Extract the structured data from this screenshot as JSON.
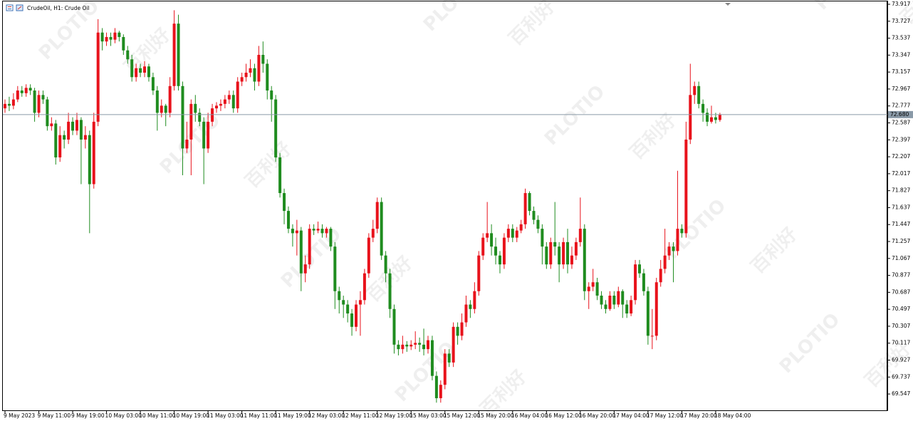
{
  "chart_data": {
    "type": "candlestick",
    "title": "CrudeOil, H1:  Crude Oil",
    "watermarks": [
      "PLOTIO",
      "百利好"
    ],
    "up_color": "#e8121b",
    "down_color": "#1f8c1f",
    "ylim": [
      69.364,
      73.965
    ],
    "yticks": [
      73.917,
      73.727,
      73.537,
      73.347,
      73.157,
      72.967,
      72.777,
      72.587,
      72.397,
      72.207,
      72.017,
      71.827,
      71.637,
      71.447,
      71.257,
      71.067,
      70.877,
      70.687,
      70.497,
      70.307,
      70.117,
      69.927,
      69.737,
      69.547
    ],
    "current_price": {
      "value": 72.68,
      "label": "72.680"
    },
    "categories": [
      "9 May 2023",
      null,
      null,
      null,
      null,
      null,
      null,
      null,
      "9 May 11:00",
      null,
      null,
      null,
      null,
      null,
      null,
      null,
      "9 May 19:00",
      null,
      null,
      null,
      null,
      null,
      null,
      null,
      "10 May 03:00",
      null,
      null,
      null,
      null,
      null,
      null,
      null,
      "10 May 11:00",
      null,
      null,
      null,
      null,
      null,
      null,
      null,
      "10 May 19:00",
      null,
      null,
      null,
      null,
      null,
      null,
      null,
      "11 May 03:00",
      null,
      null,
      null,
      null,
      null,
      null,
      null,
      "11 May 11:00",
      null,
      null,
      null,
      null,
      null,
      null,
      null,
      "11 May 19:00",
      null,
      null,
      null,
      null,
      null,
      null,
      null,
      "12 May 03:00",
      null,
      null,
      null,
      null,
      null,
      null,
      null,
      "12 May 11:00",
      null,
      null,
      null,
      null,
      null,
      null,
      null,
      "12 May 19:00",
      null,
      null,
      null,
      null,
      null,
      null,
      null,
      "15 May 03:00",
      null,
      null,
      null,
      null,
      null,
      null,
      null,
      "15 May 12:00",
      null,
      null,
      null,
      null,
      null,
      null,
      null,
      "15 May 20:00",
      null,
      null,
      null,
      null,
      null,
      null,
      null,
      "16 May 04:00",
      null,
      null,
      null,
      null,
      null,
      null,
      null,
      "16 May 12:00",
      null,
      null,
      null,
      null,
      null,
      null,
      null,
      "16 May 20:00",
      null,
      null,
      null,
      null,
      null,
      null,
      null,
      "17 May 04:00",
      null,
      null,
      null,
      null,
      null,
      null,
      null,
      "17 May 12:00",
      null,
      null,
      null,
      null,
      null,
      null,
      null,
      "17 May 20:00",
      null,
      null,
      null,
      null,
      null,
      null,
      null,
      "18 May 04:00",
      null
    ],
    "open": [
      72.75,
      72.8,
      72.78,
      72.85,
      72.95,
      72.92,
      72.98,
      72.95,
      72.7,
      72.9,
      72.85,
      72.55,
      72.58,
      72.2,
      72.45,
      72.4,
      72.6,
      72.5,
      72.62,
      72.4,
      72.45,
      71.9,
      72.6,
      73.6,
      73.5,
      73.55,
      73.52,
      73.6,
      73.55,
      73.4,
      73.3,
      73.1,
      73.2,
      73.15,
      73.22,
      73.1,
      72.95,
      72.7,
      72.78,
      72.7,
      73.0,
      73.7,
      73.0,
      72.3,
      72.4,
      72.8,
      72.7,
      72.6,
      72.3,
      72.6,
      72.75,
      72.78,
      72.8,
      72.85,
      72.9,
      72.75,
      73.05,
      73.1,
      73.15,
      73.2,
      73.05,
      73.35,
      73.25,
      72.95,
      72.85,
      72.2,
      71.8,
      71.6,
      71.4,
      71.35,
      71.38,
      70.9,
      71.0,
      71.4,
      71.38,
      71.4,
      71.35,
      71.4,
      71.2,
      70.7,
      70.6,
      70.55,
      70.45,
      70.3,
      70.55,
      70.6,
      70.9,
      71.3,
      71.4,
      71.7,
      71.1,
      70.9,
      70.5,
      70.1,
      70.05,
      70.1,
      70.08,
      70.1,
      70.12,
      70.1,
      70.05,
      70.15,
      69.75,
      69.5,
      69.65,
      70.0,
      69.9,
      70.3,
      70.2,
      70.35,
      70.55,
      70.5,
      70.7,
      71.1,
      71.3,
      71.35,
      71.2,
      71.1,
      71.0,
      71.3,
      71.4,
      71.3,
      71.38,
      71.45,
      71.8,
      71.6,
      71.5,
      71.4,
      71.2,
      71.0,
      71.25,
      71.2,
      71.0,
      71.25,
      71.0,
      71.1,
      71.25,
      71.4,
      70.7,
      70.75,
      70.8,
      70.65,
      70.55,
      70.5,
      70.65,
      70.55,
      70.7,
      70.55,
      70.45,
      70.6,
      71.0,
      70.9,
      70.7,
      70.2,
      70.2,
      70.8,
      70.95,
      71.1,
      71.2,
      71.15,
      71.4,
      71.35,
      72.4,
      72.9,
      73.0,
      72.8,
      72.7,
      72.6,
      72.65,
      72.62
    ],
    "high": [
      72.85,
      72.88,
      72.92,
      73.0,
      73.0,
      73.02,
      73.02,
      72.98,
      72.95,
      72.95,
      72.88,
      72.65,
      72.62,
      72.55,
      72.5,
      72.7,
      72.65,
      72.7,
      72.65,
      72.55,
      72.5,
      72.7,
      73.75,
      73.65,
      73.6,
      73.6,
      73.65,
      73.62,
      73.58,
      73.45,
      73.35,
      73.25,
      73.25,
      73.28,
      73.25,
      73.15,
      73.0,
      72.85,
      72.8,
      73.1,
      73.85,
      73.8,
      73.05,
      72.6,
      72.85,
      72.9,
      72.75,
      72.65,
      72.7,
      72.8,
      72.82,
      72.85,
      72.9,
      72.95,
      72.95,
      73.1,
      73.15,
      73.25,
      73.3,
      73.25,
      73.45,
      73.5,
      73.3,
      73.0,
      72.9,
      72.25,
      71.85,
      71.65,
      71.45,
      71.5,
      71.42,
      71.1,
      71.45,
      71.45,
      71.48,
      71.45,
      71.42,
      71.42,
      71.25,
      70.75,
      70.65,
      70.6,
      70.5,
      70.6,
      70.7,
      70.95,
      71.35,
      71.5,
      71.75,
      71.75,
      71.15,
      70.95,
      70.55,
      70.15,
      70.2,
      70.14,
      70.15,
      70.25,
      70.18,
      70.28,
      70.2,
      70.2,
      69.8,
      69.7,
      70.05,
      70.05,
      70.35,
      70.35,
      70.45,
      70.65,
      70.6,
      70.8,
      71.15,
      71.35,
      71.7,
      71.45,
      71.3,
      71.15,
      71.35,
      71.45,
      71.45,
      71.42,
      71.5,
      71.85,
      71.82,
      71.65,
      71.55,
      71.45,
      71.25,
      71.3,
      71.7,
      71.25,
      71.3,
      71.4,
      71.2,
      71.3,
      71.75,
      71.45,
      70.8,
      70.95,
      70.85,
      70.7,
      70.6,
      70.7,
      70.7,
      70.75,
      70.72,
      70.6,
      70.65,
      71.05,
      71.05,
      70.95,
      70.75,
      70.5,
      70.85,
      71.05,
      71.4,
      71.25,
      71.25,
      72.05,
      71.45,
      72.6,
      73.25,
      73.05,
      73.05,
      72.85,
      72.75,
      72.78,
      72.7,
      72.7
    ],
    "low": [
      72.7,
      72.72,
      72.74,
      72.82,
      72.88,
      72.88,
      72.9,
      72.6,
      72.65,
      72.8,
      72.5,
      72.5,
      72.12,
      72.15,
      72.3,
      72.35,
      72.45,
      72.45,
      71.9,
      72.3,
      71.35,
      71.85,
      72.55,
      73.4,
      73.45,
      73.45,
      73.48,
      73.5,
      73.35,
      73.25,
      73.05,
      73.05,
      73.1,
      73.1,
      73.05,
      72.9,
      72.5,
      72.65,
      72.55,
      72.65,
      72.95,
      72.95,
      72.0,
      72.25,
      72.0,
      72.6,
      72.55,
      71.9,
      72.25,
      72.55,
      72.7,
      72.72,
      72.75,
      72.8,
      72.7,
      72.7,
      73.0,
      73.05,
      73.1,
      72.95,
      73.0,
      73.15,
      72.85,
      72.6,
      72.15,
      71.75,
      71.45,
      71.35,
      71.2,
      71.1,
      70.7,
      70.8,
      70.95,
      71.33,
      71.35,
      71.3,
      71.3,
      71.15,
      70.5,
      70.45,
      70.4,
      70.35,
      70.2,
      70.25,
      70.2,
      70.55,
      70.85,
      71.25,
      71.35,
      71.05,
      70.8,
      70.4,
      70.0,
      69.98,
      70.0,
      70.02,
      70.04,
      70.05,
      70.02,
      69.98,
      70.0,
      69.7,
      69.45,
      69.45,
      69.6,
      69.85,
      69.85,
      70.1,
      70.15,
      70.3,
      70.4,
      70.45,
      70.65,
      71.05,
      71.25,
      71.1,
      71.0,
      70.9,
      70.95,
      71.25,
      71.25,
      71.25,
      71.35,
      71.4,
      71.55,
      71.45,
      71.35,
      71.0,
      70.95,
      70.95,
      71.1,
      70.8,
      70.95,
      70.9,
      70.95,
      71.05,
      71.2,
      70.6,
      70.5,
      70.7,
      70.6,
      70.5,
      70.45,
      70.48,
      70.5,
      70.52,
      70.4,
      70.4,
      70.42,
      70.55,
      70.85,
      70.65,
      70.1,
      70.05,
      70.15,
      70.75,
      70.9,
      71.05,
      70.8,
      71.1,
      71.3,
      71.3,
      72.35,
      72.8,
      72.75,
      72.6,
      72.55,
      72.58,
      72.58,
      72.6
    ],
    "close": [
      72.8,
      72.78,
      72.85,
      72.95,
      72.92,
      72.98,
      72.95,
      72.7,
      72.9,
      72.85,
      72.55,
      72.58,
      72.2,
      72.45,
      72.4,
      72.6,
      72.5,
      72.62,
      72.4,
      72.45,
      71.9,
      72.6,
      73.6,
      73.5,
      73.55,
      73.52,
      73.6,
      73.55,
      73.4,
      73.3,
      73.1,
      73.2,
      73.15,
      73.22,
      73.1,
      72.95,
      72.7,
      72.78,
      72.7,
      73.0,
      73.7,
      73.0,
      72.3,
      72.4,
      72.8,
      72.7,
      72.6,
      72.3,
      72.6,
      72.75,
      72.78,
      72.8,
      72.85,
      72.9,
      72.75,
      73.05,
      73.1,
      73.15,
      73.2,
      73.05,
      73.35,
      73.25,
      72.95,
      72.85,
      72.2,
      71.8,
      71.6,
      71.4,
      71.35,
      71.38,
      70.9,
      71.0,
      71.4,
      71.38,
      71.4,
      71.35,
      71.4,
      71.2,
      70.7,
      70.6,
      70.55,
      70.45,
      70.3,
      70.55,
      70.6,
      70.9,
      71.3,
      71.4,
      71.7,
      71.1,
      70.9,
      70.5,
      70.1,
      70.05,
      70.1,
      70.08,
      70.1,
      70.12,
      70.1,
      70.05,
      70.15,
      69.75,
      69.5,
      69.65,
      70.0,
      69.9,
      70.3,
      70.2,
      70.35,
      70.55,
      70.5,
      70.7,
      71.1,
      71.3,
      71.35,
      71.2,
      71.1,
      71.0,
      71.3,
      71.4,
      71.3,
      71.38,
      71.45,
      71.8,
      71.6,
      71.5,
      71.4,
      71.2,
      71.0,
      71.25,
      71.2,
      71.0,
      71.25,
      71.0,
      71.1,
      71.25,
      71.4,
      70.7,
      70.75,
      70.8,
      70.65,
      70.55,
      70.5,
      70.65,
      70.55,
      70.7,
      70.55,
      70.45,
      70.6,
      71.0,
      70.9,
      70.7,
      70.2,
      70.2,
      70.8,
      70.95,
      71.1,
      71.2,
      71.15,
      71.4,
      71.35,
      72.4,
      72.9,
      73.0,
      72.8,
      72.7,
      72.6,
      72.65,
      72.62,
      72.68
    ]
  }
}
